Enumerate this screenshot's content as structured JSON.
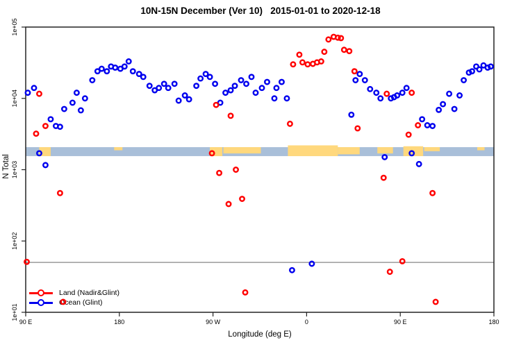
{
  "chart_data": {
    "type": "scatter",
    "title": "10N-15N December (Ver 10)   2015-01-01 to 2020-12-18",
    "xlabel": "Longitude (deg E)",
    "ylabel": "N Total",
    "x_axis": {
      "range": [
        90,
        540
      ],
      "ticks": [
        {
          "deg": 90,
          "label": "90 E"
        },
        {
          "deg": 180,
          "label": "180"
        },
        {
          "deg": 270,
          "label": "90 W"
        },
        {
          "deg": 360,
          "label": "0"
        },
        {
          "deg": 450,
          "label": "90 E"
        },
        {
          "deg": 540,
          "label": "180"
        }
      ]
    },
    "y_axis": {
      "scale": "log",
      "range": [
        10,
        100000
      ],
      "ticks": [
        {
          "value": 100000,
          "label": "1e+05"
        },
        {
          "value": 10000,
          "label": "1e+04"
        },
        {
          "value": 1000,
          "label": "1e+03"
        },
        {
          "value": 100,
          "label": "1e+02"
        },
        {
          "value": 10,
          "label": "1e+01"
        }
      ]
    },
    "reference_line": {
      "value": 50,
      "color": "#999999"
    },
    "map_strip": {
      "ocean_color": "#a9bfd9",
      "land_color": "#ffd87d",
      "value_top": 2070,
      "value_bottom": 1550,
      "land_segments": [
        {
          "from": 103,
          "to": 114,
          "h": 1.0
        },
        {
          "from": 175,
          "to": 183,
          "h": 0.35
        },
        {
          "from": 267,
          "to": 279,
          "h": 1.0
        },
        {
          "from": 280,
          "to": 316,
          "h": 0.7
        },
        {
          "from": 342,
          "to": 390,
          "h": 1.2
        },
        {
          "from": 390,
          "to": 411,
          "h": 0.8
        },
        {
          "from": 428,
          "to": 443,
          "h": 0.7
        },
        {
          "from": 453,
          "to": 472,
          "h": 1.1
        },
        {
          "from": 473,
          "to": 488,
          "h": 0.45
        },
        {
          "from": 524,
          "to": 531,
          "h": 0.35
        }
      ]
    },
    "series": [
      {
        "name": "Ocean (Glint)",
        "color": "#0000ee",
        "points": [
          [
            92,
            12000
          ],
          [
            98,
            14000
          ],
          [
            103,
            1700
          ],
          [
            109,
            1160
          ],
          [
            114,
            5100
          ],
          [
            119,
            4100
          ],
          [
            123,
            4000
          ],
          [
            127,
            7100
          ],
          [
            135,
            8700
          ],
          [
            139,
            12000
          ],
          [
            143,
            6800
          ],
          [
            147,
            10000
          ],
          [
            154,
            18000
          ],
          [
            159,
            24000
          ],
          [
            163,
            26000
          ],
          [
            168,
            24000
          ],
          [
            172,
            28000
          ],
          [
            176,
            27000
          ],
          [
            181,
            26000
          ],
          [
            185,
            28000
          ],
          [
            189,
            33000
          ],
          [
            193,
            24000
          ],
          [
            199,
            22000
          ],
          [
            203,
            20000
          ],
          [
            209,
            15000
          ],
          [
            214,
            13000
          ],
          [
            218,
            14000
          ],
          [
            223,
            16000
          ],
          [
            227,
            14000
          ],
          [
            233,
            16000
          ],
          [
            237,
            9300
          ],
          [
            243,
            11000
          ],
          [
            247,
            9700
          ],
          [
            254,
            15000
          ],
          [
            258,
            19000
          ],
          [
            263,
            22000
          ],
          [
            267,
            20000
          ],
          [
            272,
            16000
          ],
          [
            277,
            8700
          ],
          [
            282,
            12000
          ],
          [
            287,
            13000
          ],
          [
            291,
            15000
          ],
          [
            297,
            18000
          ],
          [
            302,
            16000
          ],
          [
            307,
            20000
          ],
          [
            311,
            12000
          ],
          [
            317,
            14000
          ],
          [
            322,
            17000
          ],
          [
            329,
            10000
          ],
          [
            331,
            14000
          ],
          [
            336,
            17000
          ],
          [
            341,
            10000
          ],
          [
            346,
            39
          ],
          [
            365,
            48
          ],
          [
            403,
            5900
          ],
          [
            407,
            18000
          ],
          [
            411,
            22000
          ],
          [
            416,
            18000
          ],
          [
            421,
            13500
          ],
          [
            427,
            12000
          ],
          [
            431,
            10000
          ],
          [
            435,
            1500
          ],
          [
            441,
            10000
          ],
          [
            444,
            10400
          ],
          [
            447,
            11000
          ],
          [
            452,
            12000
          ],
          [
            456,
            14000
          ],
          [
            461,
            1700
          ],
          [
            468,
            1200
          ],
          [
            471,
            5100
          ],
          [
            476,
            4200
          ],
          [
            481,
            4100
          ],
          [
            487,
            6900
          ],
          [
            491,
            8300
          ],
          [
            497,
            11600
          ],
          [
            502,
            7100
          ],
          [
            507,
            11000
          ],
          [
            511,
            18000
          ],
          [
            516,
            23000
          ],
          [
            519,
            24000
          ],
          [
            523,
            28000
          ],
          [
            526,
            25500
          ],
          [
            530,
            29000
          ],
          [
            534,
            27000
          ],
          [
            537,
            28000
          ]
        ]
      },
      {
        "name": "Land (Nadir&Glint)",
        "color": "#ff0000",
        "points": [
          [
            91,
            51
          ],
          [
            100,
            3200
          ],
          [
            103,
            11600
          ],
          [
            109,
            4100
          ],
          [
            123,
            470
          ],
          [
            126,
            14
          ],
          [
            269,
            1700
          ],
          [
            273,
            8100
          ],
          [
            276,
            900
          ],
          [
            285,
            330
          ],
          [
            287,
            5700
          ],
          [
            292,
            1000
          ],
          [
            298,
            390
          ],
          [
            301,
            19
          ],
          [
            344,
            4400
          ],
          [
            347,
            30000
          ],
          [
            353,
            41000
          ],
          [
            356,
            32000
          ],
          [
            361,
            30000
          ],
          [
            366,
            30500
          ],
          [
            370,
            32000
          ],
          [
            374,
            33000
          ],
          [
            377,
            45000
          ],
          [
            381,
            67000
          ],
          [
            386,
            73000
          ],
          [
            390,
            71000
          ],
          [
            393,
            70000
          ],
          [
            396,
            48000
          ],
          [
            401,
            46000
          ],
          [
            406,
            24000
          ],
          [
            409,
            3800
          ],
          [
            434,
            770
          ],
          [
            437,
            11600
          ],
          [
            440,
            37
          ],
          [
            452,
            52
          ],
          [
            458,
            3100
          ],
          [
            461,
            12000
          ],
          [
            467,
            4200
          ],
          [
            481,
            470
          ],
          [
            484,
            14
          ]
        ]
      }
    ]
  },
  "legend": {
    "items": [
      {
        "label": "Land (Nadir&Glint)",
        "color": "#ff0000"
      },
      {
        "label": "Ocean (Glint)",
        "color": "#0000ee"
      }
    ]
  }
}
